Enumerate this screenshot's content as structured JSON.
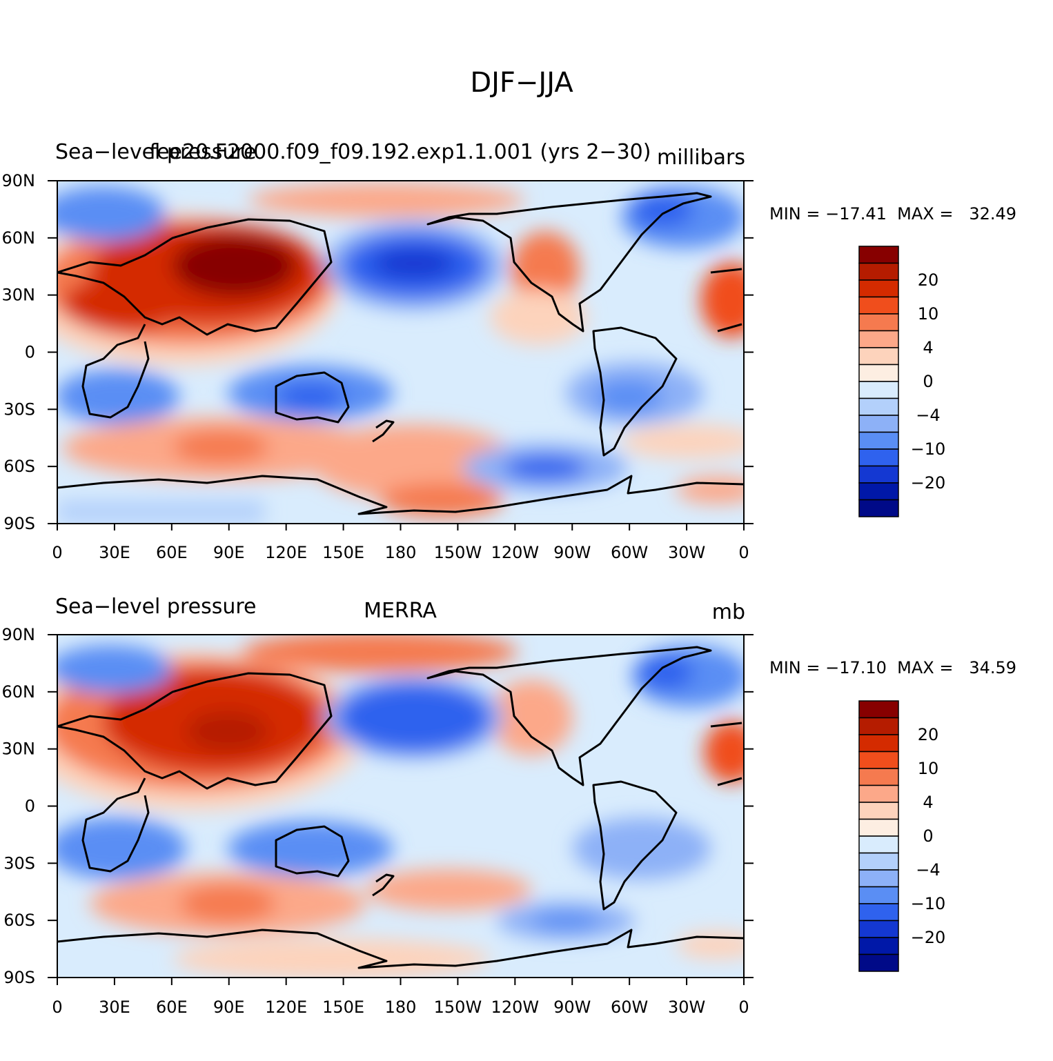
{
  "title": "DJF−JJA",
  "panels": [
    {
      "left_label": "Sea−level pressure",
      "center_label": "fee20.F2000.f09_f09.192.exp1.1.001 (yrs 2−30)",
      "units": "millibars",
      "stats": "MIN = −17.41  MAX =   32.49",
      "variant": "model"
    },
    {
      "left_label": "Sea−level pressure",
      "center_label": "MERRA",
      "units": "mb",
      "stats": "MIN = −17.10  MAX =   34.59",
      "variant": "obs"
    }
  ],
  "x_ticks": [
    "0",
    "30E",
    "60E",
    "90E",
    "120E",
    "150E",
    "180",
    "150W",
    "120W",
    "90W",
    "60W",
    "30W",
    "0"
  ],
  "y_ticks": [
    "90N",
    "60N",
    "30N",
    "0",
    "30S",
    "60S",
    "90S"
  ],
  "colorbar": {
    "colors": [
      "#870000",
      "#b51c00",
      "#d42b00",
      "#f04e1c",
      "#f57a4f",
      "#fca889",
      "#fdd3bc",
      "#fdeee2",
      "#d9ecfd",
      "#b3d0fb",
      "#8db1f7",
      "#5a8ef4",
      "#2f62ee",
      "#1438d2",
      "#0018a8",
      "#000a88"
    ],
    "labels": [
      "20",
      "10",
      "4",
      "0",
      "−4",
      "−10",
      "−20"
    ]
  },
  "map_colors": {
    "ocean_neutral": "#d9ecfd",
    "coastline": "#000000"
  }
}
